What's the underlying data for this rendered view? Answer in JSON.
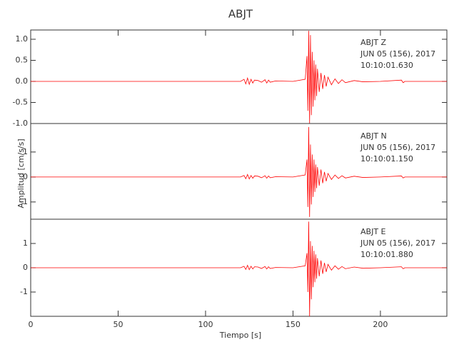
{
  "chart_data": [
    {
      "type": "line",
      "title": "ABJT",
      "annotations": [
        "ABJT   Z",
        "JUN 05 (156), 2017",
        "10:10:01.630"
      ],
      "color": "#ff0000",
      "xlim": [
        0,
        238
      ],
      "x": [
        0,
        40,
        80,
        120,
        122,
        123,
        124,
        125,
        126,
        127,
        128,
        130,
        132,
        134,
        135,
        136,
        137,
        140,
        150,
        157,
        158,
        158.5,
        159,
        159.5,
        160,
        160.5,
        161,
        161.5,
        162,
        162.5,
        163,
        163.5,
        164,
        165,
        166,
        167,
        168,
        169,
        170,
        172,
        174,
        176,
        178,
        180,
        185,
        190,
        200,
        212,
        213,
        214,
        238
      ],
      "values": [
        0,
        0,
        0,
        0,
        0.05,
        -0.06,
        0.08,
        -0.07,
        0.05,
        -0.04,
        0.03,
        0.02,
        -0.02,
        0.04,
        -0.04,
        0.03,
        -0.02,
        0.01,
        0,
        0.05,
        0.6,
        -0.7,
        1.2,
        -1.0,
        1.1,
        -0.8,
        0.7,
        -0.6,
        0.5,
        -0.45,
        0.4,
        -0.35,
        0.3,
        -0.25,
        0.2,
        -0.18,
        0.15,
        -0.12,
        0.1,
        -0.08,
        0.06,
        -0.05,
        0.04,
        -0.03,
        0.02,
        -0.01,
        0,
        0.03,
        -0.03,
        0,
        0
      ],
      "ylim": [
        -1.0,
        1.22
      ],
      "yticks": [
        {
          "value": -1,
          "label": "-1.0"
        },
        -0.5,
        {
          "value": 0,
          "label": "0.0"
        },
        0.5,
        {
          "value": 1,
          "label": "1.0"
        }
      ]
    },
    {
      "type": "line",
      "ylabel": "Amplitud [cm/s/s]",
      "annotations": [
        "ABJT   N",
        "JUN 05 (156), 2017",
        "10:10:01.150"
      ],
      "color": "#ff0000",
      "xlim": [
        0,
        238
      ],
      "x": [
        0,
        40,
        80,
        120,
        122,
        123,
        124,
        125,
        126,
        127,
        128,
        130,
        132,
        134,
        135,
        136,
        137,
        140,
        150,
        157,
        158,
        158.5,
        159,
        159.5,
        160,
        160.5,
        161,
        161.5,
        162,
        162.5,
        163,
        163.5,
        164,
        165,
        166,
        167,
        168,
        169,
        170,
        172,
        174,
        176,
        178,
        180,
        185,
        190,
        200,
        212,
        213,
        214,
        238
      ],
      "values": [
        0,
        0,
        0,
        0,
        0.06,
        -0.07,
        0.1,
        -0.08,
        0.06,
        -0.05,
        0.04,
        0.03,
        -0.03,
        0.05,
        -0.05,
        0.04,
        -0.03,
        0.01,
        0,
        0.08,
        0.7,
        -1.2,
        2.0,
        -1.6,
        1.3,
        -1.1,
        0.9,
        -0.8,
        0.7,
        -0.6,
        0.5,
        -0.45,
        0.4,
        -0.35,
        0.3,
        -0.25,
        0.2,
        -0.17,
        0.14,
        -0.1,
        0.08,
        -0.06,
        0.05,
        -0.04,
        0.03,
        -0.02,
        0,
        0.04,
        -0.04,
        0,
        0
      ],
      "ylim": [
        -1.69,
        2.14
      ],
      "yticks": [
        -1,
        0,
        1
      ]
    },
    {
      "type": "line",
      "xlabel": "Tiempo [s]",
      "annotations": [
        "ABJT   E",
        "JUN 05 (156), 2017",
        "10:10:01.880"
      ],
      "color": "#ff0000",
      "xlim": [
        0,
        238
      ],
      "xticks": [
        0,
        50,
        100,
        150,
        200
      ],
      "x": [
        0,
        40,
        80,
        120,
        122,
        123,
        124,
        125,
        126,
        127,
        128,
        130,
        132,
        134,
        135,
        136,
        137,
        140,
        150,
        157,
        158,
        158.5,
        159,
        159.5,
        160,
        160.5,
        161,
        161.5,
        162,
        162.5,
        163,
        163.5,
        164,
        165,
        166,
        167,
        168,
        169,
        170,
        172,
        174,
        176,
        178,
        180,
        185,
        190,
        200,
        212,
        213,
        214,
        238
      ],
      "values": [
        0,
        0,
        0,
        0,
        0.06,
        -0.07,
        0.1,
        -0.08,
        0.06,
        -0.05,
        0.04,
        0.03,
        -0.03,
        0.05,
        -0.05,
        0.04,
        -0.03,
        0.01,
        0,
        0.08,
        0.6,
        -1.0,
        1.9,
        -2.0,
        1.1,
        -1.3,
        0.9,
        -0.8,
        0.7,
        -0.6,
        0.55,
        -0.45,
        0.4,
        -0.35,
        0.3,
        -0.25,
        0.2,
        -0.17,
        0.14,
        -0.1,
        0.08,
        -0.06,
        0.05,
        -0.04,
        0.03,
        -0.02,
        0,
        0.04,
        -0.04,
        0,
        0
      ],
      "ylim": [
        -2,
        2
      ],
      "yticks": [
        -1,
        0,
        1
      ]
    }
  ]
}
